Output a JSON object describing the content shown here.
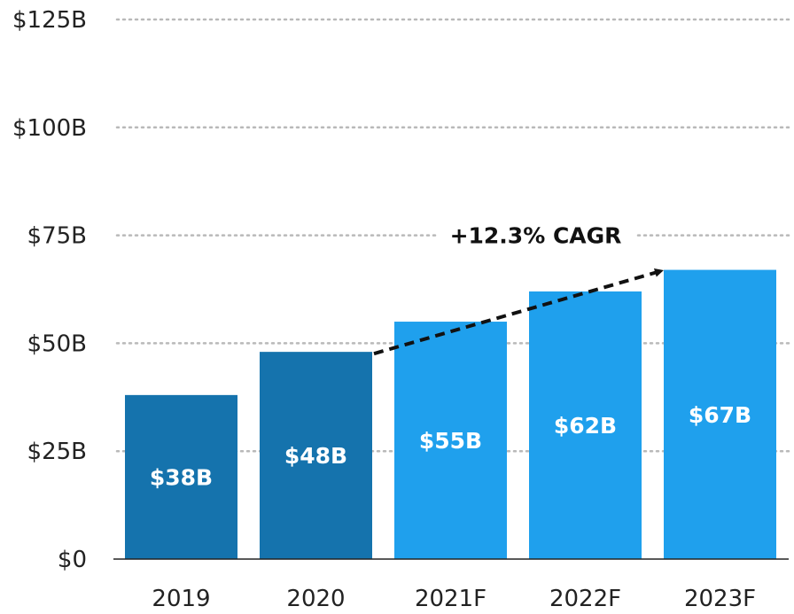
{
  "chart_data": {
    "type": "bar",
    "categories": [
      "2019",
      "2020",
      "2021F",
      "2022F",
      "2023F"
    ],
    "values": [
      38,
      48,
      55,
      62,
      67
    ],
    "value_labels": [
      "$38B",
      "$48B",
      "$55B",
      "$62B",
      "$67B"
    ],
    "forecast": [
      false,
      false,
      true,
      true,
      true
    ],
    "ylim": [
      0,
      125
    ],
    "yticks": [
      0,
      25,
      50,
      75,
      100,
      125
    ],
    "ytick_labels": [
      "$0",
      "$25B",
      "$50B",
      "$75B",
      "$100B",
      "$125B"
    ],
    "grid": true,
    "annotation": {
      "text": "+12.3% CAGR",
      "from_category": "2020",
      "to_category": "2023F"
    },
    "colors": {
      "actual": "#1573ad",
      "forecast": "#1fa0ed",
      "grid": "#b9b9b9",
      "axis": "#222222",
      "label": "#ffffff",
      "arrow": "#111111"
    }
  }
}
